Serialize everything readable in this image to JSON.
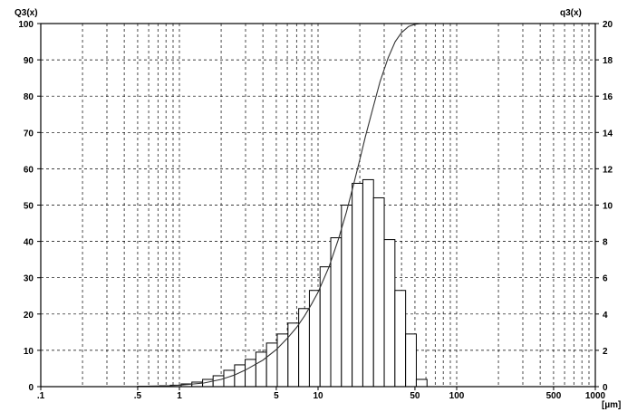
{
  "chart_data": {
    "type": "bar",
    "x_scale": "log",
    "xlim": [
      0.1,
      1000
    ],
    "x_ticks": [
      {
        "value": 0.1,
        "label": ".1"
      },
      {
        "value": 0.5,
        "label": ".5"
      },
      {
        "value": 1,
        "label": "1"
      },
      {
        "value": 5,
        "label": "5"
      },
      {
        "value": 10,
        "label": "10"
      },
      {
        "value": 50,
        "label": "50"
      },
      {
        "value": 100,
        "label": "100"
      },
      {
        "value": 500,
        "label": "500"
      },
      {
        "value": 1000,
        "label": "1000"
      }
    ],
    "x_unit": "[µm]",
    "y_left": {
      "title": "Q3(x)",
      "lim": [
        0,
        100
      ],
      "ticks": [
        0,
        10,
        20,
        30,
        40,
        50,
        60,
        70,
        80,
        90,
        100
      ]
    },
    "y_right": {
      "title": "q3(x)",
      "lim": [
        0,
        20
      ],
      "ticks": [
        0,
        2,
        4,
        6,
        8,
        10,
        12,
        14,
        16,
        18,
        20
      ]
    },
    "grid": true,
    "histogram": {
      "axis": "right",
      "bars": [
        {
          "x0": 0.5,
          "x1": 0.6,
          "value": 0.02
        },
        {
          "x0": 0.6,
          "x1": 0.72,
          "value": 0.03
        },
        {
          "x0": 0.72,
          "x1": 0.86,
          "value": 0.05
        },
        {
          "x0": 0.86,
          "x1": 1.03,
          "value": 0.08
        },
        {
          "x0": 1.03,
          "x1": 1.23,
          "value": 0.15
        },
        {
          "x0": 1.23,
          "x1": 1.47,
          "value": 0.25
        },
        {
          "x0": 1.47,
          "x1": 1.75,
          "value": 0.4
        },
        {
          "x0": 1.75,
          "x1": 2.09,
          "value": 0.6
        },
        {
          "x0": 2.09,
          "x1": 2.5,
          "value": 0.9
        },
        {
          "x0": 2.5,
          "x1": 2.98,
          "value": 1.2
        },
        {
          "x0": 2.98,
          "x1": 3.56,
          "value": 1.5
        },
        {
          "x0": 3.56,
          "x1": 4.25,
          "value": 1.9
        },
        {
          "x0": 4.25,
          "x1": 5.08,
          "value": 2.4
        },
        {
          "x0": 5.08,
          "x1": 6.07,
          "value": 2.9
        },
        {
          "x0": 6.07,
          "x1": 7.25,
          "value": 3.5
        },
        {
          "x0": 7.25,
          "x1": 8.66,
          "value": 4.3
        },
        {
          "x0": 8.66,
          "x1": 10.34,
          "value": 5.3
        },
        {
          "x0": 10.34,
          "x1": 12.35,
          "value": 6.6
        },
        {
          "x0": 12.35,
          "x1": 14.75,
          "value": 8.2
        },
        {
          "x0": 14.75,
          "x1": 17.62,
          "value": 10.0
        },
        {
          "x0": 17.62,
          "x1": 21.04,
          "value": 11.2
        },
        {
          "x0": 21.04,
          "x1": 25.13,
          "value": 11.4
        },
        {
          "x0": 25.13,
          "x1": 30.02,
          "value": 10.4
        },
        {
          "x0": 30.02,
          "x1": 35.85,
          "value": 8.1
        },
        {
          "x0": 35.85,
          "x1": 42.82,
          "value": 5.3
        },
        {
          "x0": 42.82,
          "x1": 51.14,
          "value": 2.9
        },
        {
          "x0": 51.14,
          "x1": 61.08,
          "value": 0.4
        }
      ]
    },
    "cumulative": {
      "axis": "left",
      "points": [
        [
          0.5,
          0.0
        ],
        [
          0.6,
          0.1
        ],
        [
          0.8,
          0.2
        ],
        [
          1.0,
          0.4
        ],
        [
          1.5,
          1.0
        ],
        [
          2.0,
          2.0
        ],
        [
          2.5,
          3.2
        ],
        [
          3.0,
          4.6
        ],
        [
          4.0,
          7.3
        ],
        [
          5.0,
          10.2
        ],
        [
          6.0,
          13.3
        ],
        [
          7.0,
          16.3
        ],
        [
          8.0,
          19.5
        ],
        [
          9.0,
          22.8
        ],
        [
          10.0,
          26.0
        ],
        [
          12.0,
          33.0
        ],
        [
          14.0,
          40.5
        ],
        [
          16.0,
          48.0
        ],
        [
          18.0,
          55.5
        ],
        [
          20.0,
          62.5
        ],
        [
          22.0,
          69.0
        ],
        [
          25.0,
          77.0
        ],
        [
          28.0,
          84.0
        ],
        [
          32.0,
          90.5
        ],
        [
          36.0,
          95.0
        ],
        [
          40.0,
          97.5
        ],
        [
          45.0,
          99.2
        ],
        [
          50.0,
          99.8
        ],
        [
          55.0,
          100.0
        ]
      ]
    }
  }
}
